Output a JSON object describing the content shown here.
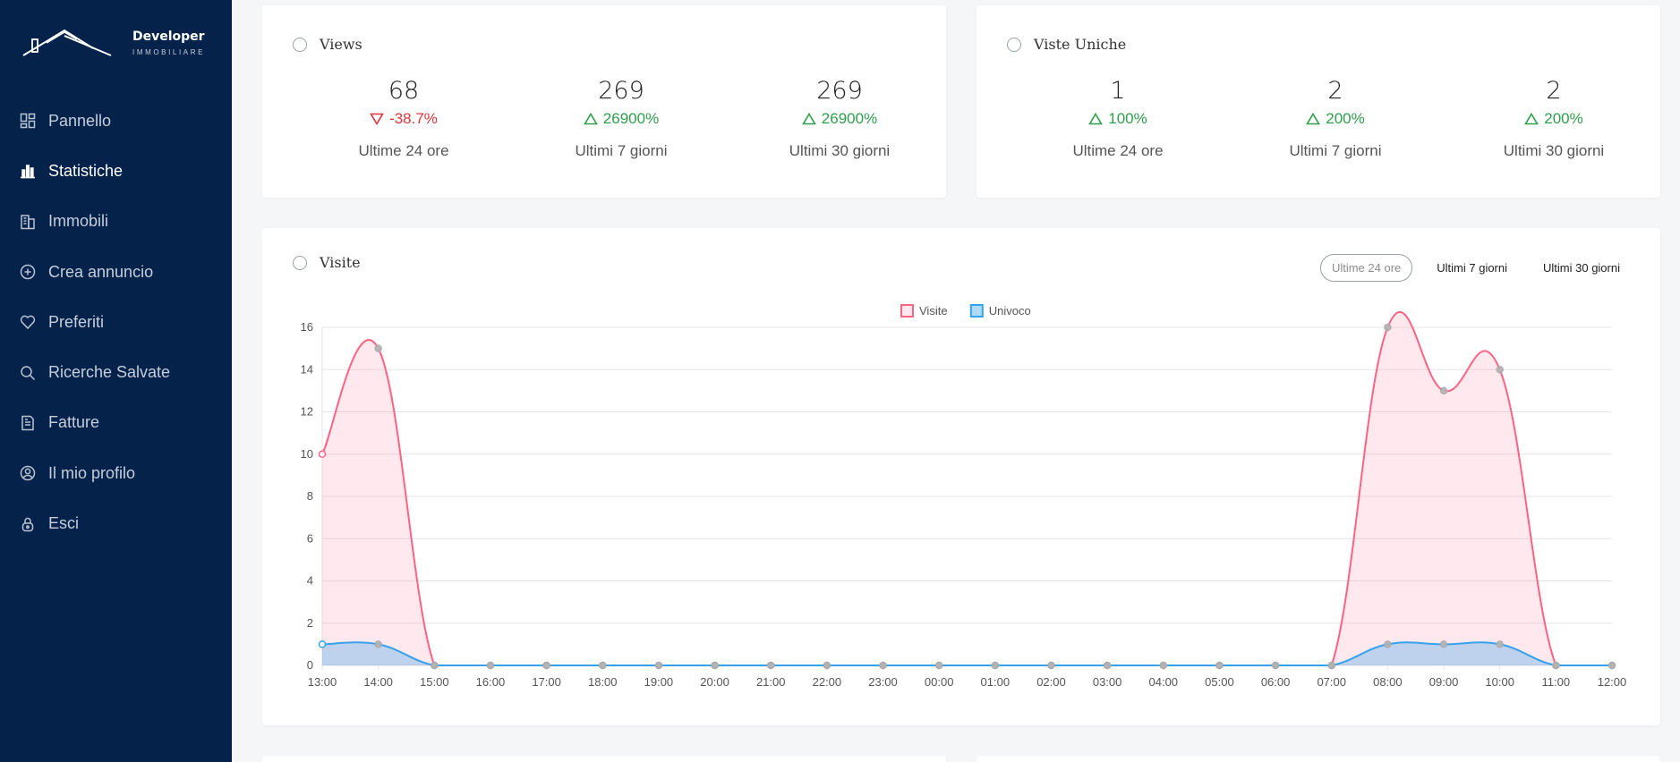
{
  "brand": {
    "title": "Developer",
    "subtitle": "IMMOBILIARE"
  },
  "sidebar": {
    "items": [
      {
        "label": "Pannello",
        "icon": "dashboard-icon",
        "active": false
      },
      {
        "label": "Statistiche",
        "icon": "bar-chart-icon",
        "active": true
      },
      {
        "label": "Immobili",
        "icon": "building-icon",
        "active": false
      },
      {
        "label": "Crea annuncio",
        "icon": "plus-circle-icon",
        "active": false
      },
      {
        "label": "Preferiti",
        "icon": "heart-icon",
        "active": false
      },
      {
        "label": "Ricerche Salvate",
        "icon": "search-icon",
        "active": false
      },
      {
        "label": "Fatture",
        "icon": "invoice-icon",
        "active": false
      },
      {
        "label": "Il mio profilo",
        "icon": "user-circle-icon",
        "active": false
      },
      {
        "label": "Esci",
        "icon": "lock-icon",
        "active": false
      }
    ]
  },
  "views_card": {
    "title": "Views",
    "stats": [
      {
        "value": "68",
        "delta": "-38.7%",
        "direction": "down",
        "label": "Ultime 24 ore"
      },
      {
        "value": "269",
        "delta": "26900%",
        "direction": "up",
        "label": "Ultimi 7 giorni"
      },
      {
        "value": "269",
        "delta": "26900%",
        "direction": "up",
        "label": "Ultimi 30 giorni"
      }
    ]
  },
  "unique_card": {
    "title": "Viste Uniche",
    "stats": [
      {
        "value": "1",
        "delta": "100%",
        "direction": "up",
        "label": "Ultime 24 ore"
      },
      {
        "value": "2",
        "delta": "200%",
        "direction": "up",
        "label": "Ultimi 7 giorni"
      },
      {
        "value": "2",
        "delta": "200%",
        "direction": "up",
        "label": "Ultimi 30 giorni"
      }
    ]
  },
  "visits_card": {
    "title": "Visite",
    "tabs": [
      {
        "label": "Ultime 24 ore",
        "active": true
      },
      {
        "label": "Ultimi 7 giorni",
        "active": false
      },
      {
        "label": "Ultimi 30 giorni",
        "active": false
      }
    ]
  },
  "colors": {
    "sidebar_bg": "#05224a",
    "up": "#2e9e4b",
    "down": "#e0343c",
    "visite": "#ff6384",
    "univoco": "#36a2eb"
  },
  "chart_data": {
    "type": "line",
    "x": [
      "13:00",
      "14:00",
      "15:00",
      "16:00",
      "17:00",
      "18:00",
      "19:00",
      "20:00",
      "21:00",
      "22:00",
      "23:00",
      "00:00",
      "01:00",
      "02:00",
      "03:00",
      "04:00",
      "05:00",
      "06:00",
      "07:00",
      "08:00",
      "09:00",
      "10:00",
      "11:00",
      "12:00"
    ],
    "series": [
      {
        "name": "Visite",
        "values": [
          10,
          15,
          0,
          0,
          0,
          0,
          0,
          0,
          0,
          0,
          0,
          0,
          0,
          0,
          0,
          0,
          0,
          0,
          0,
          16,
          13,
          14,
          0,
          0
        ],
        "color": "#ff6384"
      },
      {
        "name": "Univoco",
        "values": [
          1,
          1,
          0,
          0,
          0,
          0,
          0,
          0,
          0,
          0,
          0,
          0,
          0,
          0,
          0,
          0,
          0,
          0,
          0,
          1,
          1,
          1,
          0,
          0
        ],
        "color": "#36a2eb"
      }
    ],
    "ylim": [
      0,
      16
    ],
    "yticks": [
      0,
      2,
      4,
      6,
      8,
      10,
      12,
      14,
      16
    ],
    "grid": true,
    "legend": "top-center"
  }
}
